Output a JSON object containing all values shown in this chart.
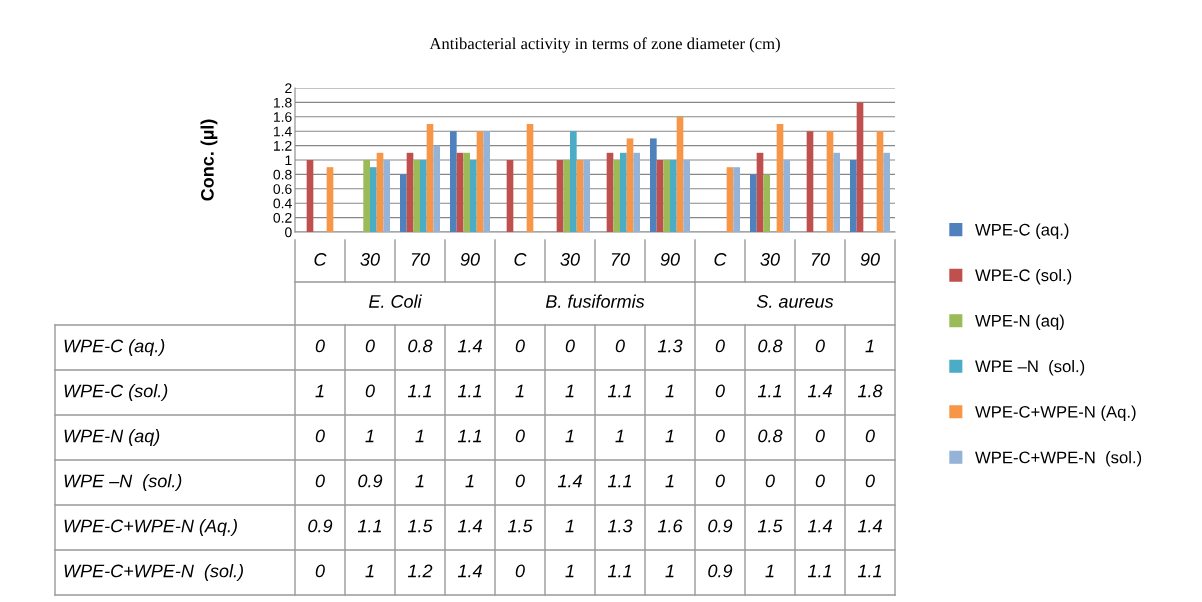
{
  "chart_data": {
    "type": "bar",
    "title": "Antibacterial activity in terms of zone diameter (cm)",
    "ylabel": "Conc. (µl)",
    "categories": [
      "C",
      "30",
      "70",
      "90",
      "C",
      "30",
      "70",
      "90",
      "C",
      "30",
      "70",
      "90"
    ],
    "annotations": [
      "E. Coli",
      "B. fusiformis",
      "S. aureus"
    ],
    "series": [
      {
        "name": "WPE-C (aq.)",
        "color": "#4f81bd",
        "values": [
          0,
          0,
          0.8,
          1.4,
          0,
          0,
          0,
          1.3,
          0,
          0.8,
          0,
          1
        ]
      },
      {
        "name": "WPE-C (sol.)",
        "color": "#c0504d",
        "values": [
          1,
          0,
          1.1,
          1.1,
          1,
          1,
          1.1,
          1,
          0,
          1.1,
          1.4,
          1.8
        ]
      },
      {
        "name": "WPE-N (aq)",
        "color": "#9bbb59",
        "values": [
          0,
          1,
          1,
          1.1,
          0,
          1,
          1,
          1,
          0,
          0.8,
          0,
          0
        ]
      },
      {
        "name": "WPE –N  (sol.)",
        "color": "#4bacc6",
        "values": [
          0,
          0.9,
          1,
          1,
          0,
          1.4,
          1.1,
          1,
          0,
          0,
          0,
          0
        ]
      },
      {
        "name": "WPE-C+WPE-N (Aq.)",
        "color": "#f79646",
        "values": [
          0.9,
          1.1,
          1.5,
          1.4,
          1.5,
          1,
          1.3,
          1.6,
          0.9,
          1.5,
          1.4,
          1.4
        ]
      },
      {
        "name": "WPE-C+WPE-N  (sol.)",
        "color": "#95b3d7",
        "values": [
          0,
          1,
          1.2,
          1.4,
          0,
          1,
          1.1,
          1,
          0.9,
          1,
          1.1,
          1.1
        ]
      }
    ],
    "ylim": [
      0,
      2
    ],
    "yticks": [
      0,
      0.2,
      0.4,
      0.6,
      0.8,
      1,
      1.2,
      1.4,
      1.6,
      1.8,
      2
    ],
    "grid": "y",
    "legend": "right",
    "data_labels": true
  }
}
